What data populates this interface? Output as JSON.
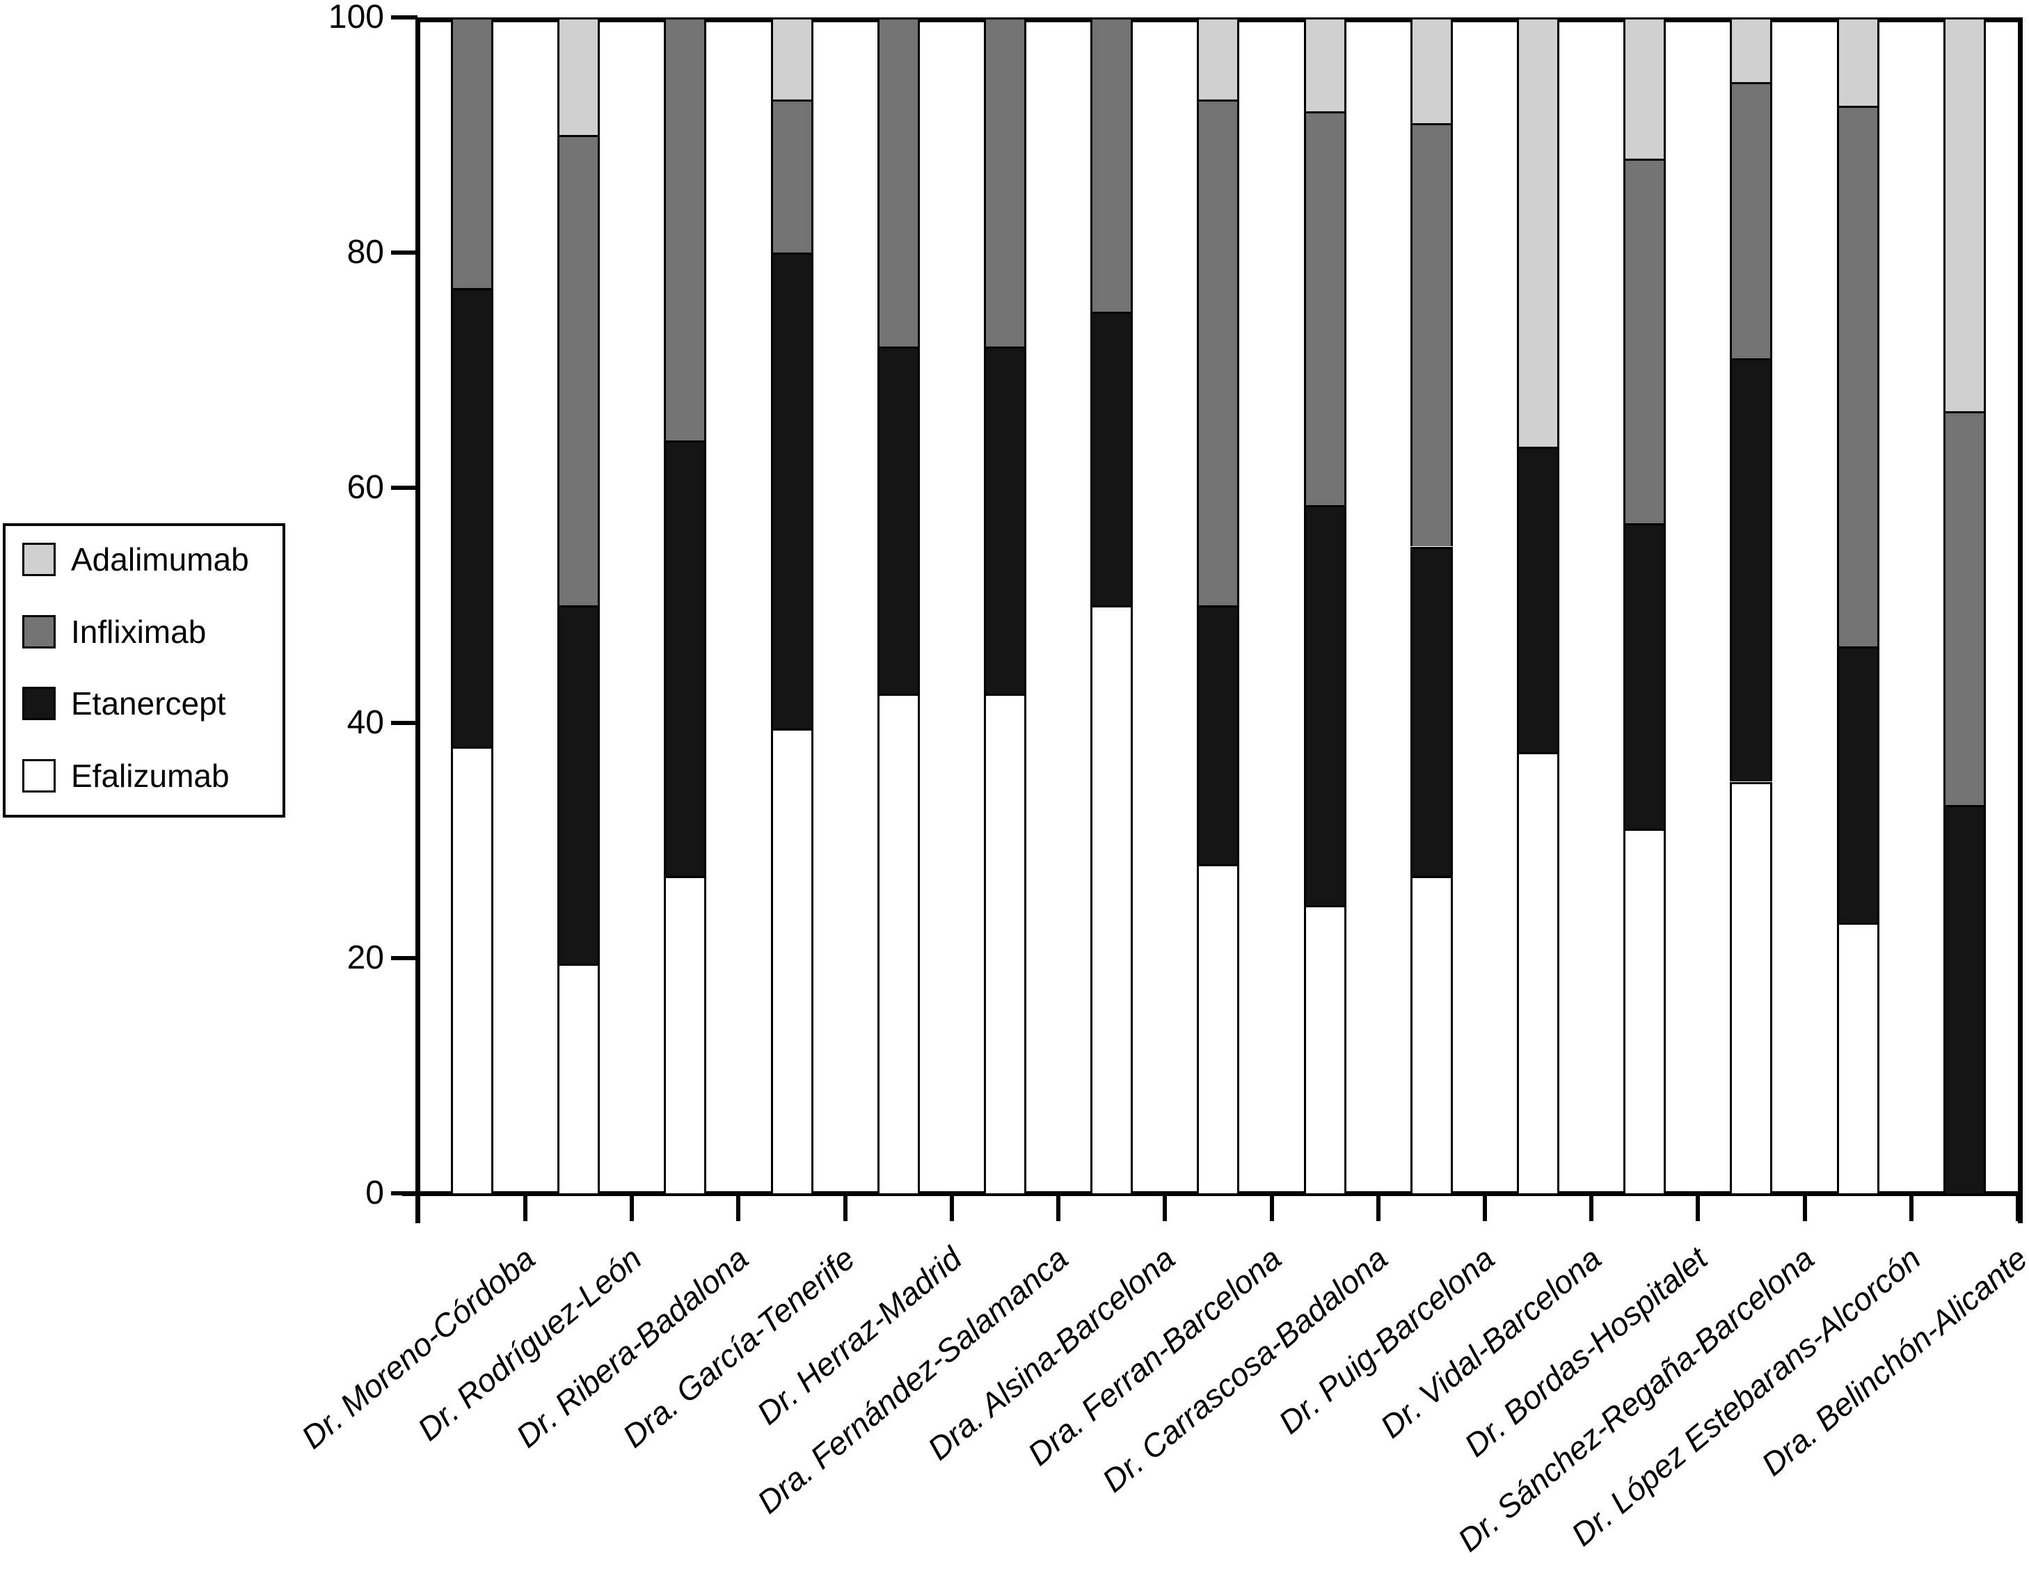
{
  "chart_data": {
    "type": "bar",
    "stacked": true,
    "title": "",
    "xlabel": "",
    "ylabel": "",
    "unit": "percent",
    "ylim": [
      0,
      100
    ],
    "yticks": [
      0,
      20,
      40,
      60,
      80,
      100
    ],
    "grid": false,
    "legend_position": "middle-left",
    "categories": [
      "Dr. Moreno-Córdoba",
      "Dr. Rodríguez-León",
      "Dr. Ribera-Badalona",
      "Dra. García-Tenerife",
      "Dr. Herraz-Madrid",
      "Dra. Fernández-Salamanca",
      "Dra. Alsina-Barcelona",
      "Dra. Ferran-Barcelona",
      "Dr. Carrascosa-Badalona",
      "Dr. Puig-Barcelona",
      "Dr. Vidal-Barcelona",
      "Dr. Bordas-Hospitalet",
      "Dr. Sánchez-Regaña-Barcelona",
      "Dr. López Estebarans-Alcorcón",
      "Dra. Belinchón-Alicante"
    ],
    "series": [
      {
        "name": "Efalizumab",
        "color": "#ffffff",
        "values": [
          38,
          19.5,
          27,
          39.5,
          42.5,
          42.5,
          50,
          28,
          24.5,
          27,
          37.5,
          31,
          35,
          23,
          0
        ]
      },
      {
        "name": "Etanercept",
        "color": "#141414",
        "values": [
          39,
          30.5,
          37,
          40.5,
          29.5,
          29.5,
          25,
          22,
          34,
          28,
          26,
          26,
          36,
          23.5,
          33
        ]
      },
      {
        "name": "Infliximab",
        "color": "#737373",
        "values": [
          23,
          40,
          36,
          13,
          28,
          28,
          25,
          43,
          33.5,
          36,
          0,
          31,
          23.5,
          46,
          33.5
        ]
      },
      {
        "name": "Adalimumab",
        "color": "#d0d0d0",
        "values": [
          0,
          10,
          0,
          7,
          0,
          0,
          0,
          7,
          8,
          9,
          36.5,
          12,
          5.5,
          7.5,
          33.5
        ]
      }
    ],
    "legend": {
      "items": [
        {
          "label": "Adalimumab",
          "color": "#d0d0d0"
        },
        {
          "label": "Infliximab",
          "color": "#737373"
        },
        {
          "label": "Etanercept",
          "color": "#141414"
        },
        {
          "label": "Efalizumab",
          "color": "#ffffff"
        }
      ]
    }
  }
}
